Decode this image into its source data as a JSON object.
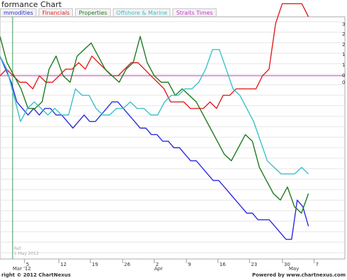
{
  "header": {
    "title": "formance Chart",
    "tabs": [
      {
        "label": "mmodities",
        "color": "#2a2ae0"
      },
      {
        "label": "Financials",
        "color": "#e02020"
      },
      {
        "label": "Properties",
        "color": "#1f7a1f"
      },
      {
        "label": "Offshore & Marine",
        "color": "#39c0c8"
      },
      {
        "label": "Straits Times",
        "color": "#cc33cc"
      }
    ]
  },
  "footer": {
    "left": "right © 2012 ChartNexus",
    "right": "Powered by www.chartnexus.com"
  },
  "chart_data": {
    "type": "line",
    "ref_label": "Ref.",
    "ref_date": "1 May 2012",
    "x_ticks": [
      "5",
      "12",
      "19",
      "26",
      "2",
      "9",
      "16",
      "23",
      "30",
      "7"
    ],
    "month_labels": [
      "Mar '12",
      "Apr",
      "May"
    ],
    "y_tick_labels": [
      "3",
      "2",
      "2",
      "1",
      "1",
      "0",
      "0"
    ],
    "baseline_color": "#cc33cc",
    "series": [
      {
        "name": "mmodities",
        "color": "#2a2ae0",
        "values": [
          3,
          1,
          -1,
          -4,
          -5,
          -6,
          -5,
          -6,
          -5,
          -5,
          -6,
          -6,
          -7,
          -8,
          -7,
          -6,
          -7,
          -7,
          -6,
          -5,
          -4,
          -4,
          -5,
          -6,
          -7,
          -8,
          -8,
          -9,
          -9,
          -10,
          -10,
          -11,
          -11,
          -12,
          -13,
          -13,
          -14,
          -15,
          -16,
          -16,
          -17,
          -18,
          -19,
          -20,
          -21,
          -21,
          -22,
          -22,
          -22,
          -23,
          -24,
          -25,
          -25,
          -19,
          -20,
          -23
        ]
      },
      {
        "name": "Financials",
        "color": "#e02020",
        "values": [
          0,
          1,
          0,
          -1,
          -1,
          -2,
          0,
          -1,
          -1,
          0,
          1,
          1,
          2,
          1,
          3,
          2,
          1,
          0,
          0,
          1,
          2,
          2,
          1,
          0,
          -1,
          -2,
          -4,
          -4,
          -4,
          -5,
          -5,
          -5,
          -4,
          -5,
          -3,
          -3,
          -2,
          -2,
          -2,
          -2,
          0,
          1,
          8,
          11,
          11,
          11,
          11,
          9
        ]
      },
      {
        "name": "Properties",
        "color": "#1f7a1f",
        "values": [
          6,
          2,
          0,
          -2,
          -5,
          -5,
          -4,
          1,
          3,
          0,
          -1,
          3,
          4,
          5,
          3,
          1,
          0,
          -1,
          1,
          2,
          6,
          2,
          0,
          -1,
          -1,
          -3,
          -2,
          -3,
          -4,
          -6,
          -8,
          -10,
          -12,
          -13,
          -11,
          -9,
          -10,
          -14,
          -16,
          -18,
          -19,
          -17,
          -20,
          -21,
          -18
        ]
      },
      {
        "name": "Offshore & Marine",
        "color": "#39c0c8",
        "values": [
          3,
          1,
          -3,
          -7,
          -5,
          -4,
          -5,
          -6,
          -5,
          -6,
          -6,
          -2,
          -3,
          -3,
          -5,
          -6,
          -6,
          -5,
          -5,
          -4,
          -5,
          -5,
          -6,
          -6,
          -4,
          -3,
          -3,
          -2,
          -2,
          -1,
          1,
          4,
          4,
          1,
          -2,
          -3,
          -5,
          -7,
          -10,
          -13,
          -14,
          -15,
          -15,
          -15,
          -14,
          -15
        ]
      }
    ]
  }
}
